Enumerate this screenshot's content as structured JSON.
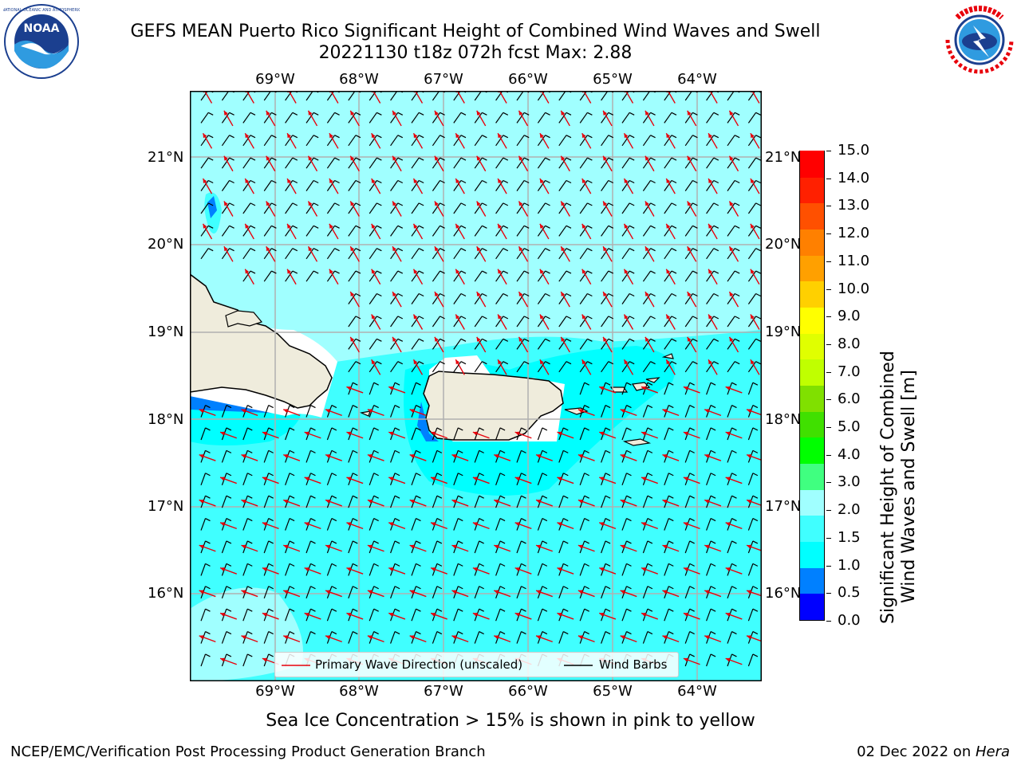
{
  "title": {
    "line1": "GEFS MEAN Puerto Rico Significant Height of Combined Wind Waves and Swell",
    "line2": "20221130 t18z 072h fcst   Max: 2.88"
  },
  "logos": {
    "left": {
      "name": "NOAA",
      "ring_text": "NATIONAL OCEANIC AND ATMOSPHERIC ADMINISTRATION · U.S. DEPARTMENT OF COMMERCE"
    },
    "right": {
      "name": "NATIONAL WEATHER SERVICE"
    }
  },
  "map": {
    "lon_labels": [
      "69°W",
      "68°W",
      "67°W",
      "66°W",
      "65°W",
      "64°W"
    ],
    "lat_labels": [
      "21°N",
      "20°N",
      "19°N",
      "18°N",
      "17°N",
      "16°N"
    ],
    "ocean_color": "#00ffff",
    "land_color": "#efecdc",
    "wave_arrow_color": "#e8000b",
    "barb_color": "#000000"
  },
  "legend": {
    "wave": "Primary Wave Direction (unscaled)",
    "barbs": "Wind Barbs"
  },
  "colorbar": {
    "label_line1": "Significant Height of Combined",
    "label_line2": "Wind Waves and Swell [m]",
    "ticks": [
      "15.0",
      "14.0",
      "13.0",
      "12.0",
      "11.0",
      "10.0",
      "9.0",
      "8.0",
      "7.0",
      "6.0",
      "5.0",
      "4.0",
      "3.0",
      "2.0",
      "1.5",
      "1.0",
      "0.5",
      "0.0"
    ],
    "colors_bottom_to_top": [
      "#0000ff",
      "#0080ff",
      "#00ffff",
      "#40ffff",
      "#a0ffff",
      "#40ff80",
      "#00ff00",
      "#40e000",
      "#80e000",
      "#c0ff00",
      "#e0ff00",
      "#ffff00",
      "#ffd000",
      "#ffa000",
      "#ff8000",
      "#ff5000",
      "#ff2000",
      "#ff0000"
    ]
  },
  "note": "Sea Ice Concentration > 15% is shown in pink to yellow",
  "footer": {
    "left": "NCEP/EMC/Verification Post Processing Product Generation Branch",
    "right_prefix": "02 Dec 2022 on ",
    "right_host": "Hera"
  }
}
